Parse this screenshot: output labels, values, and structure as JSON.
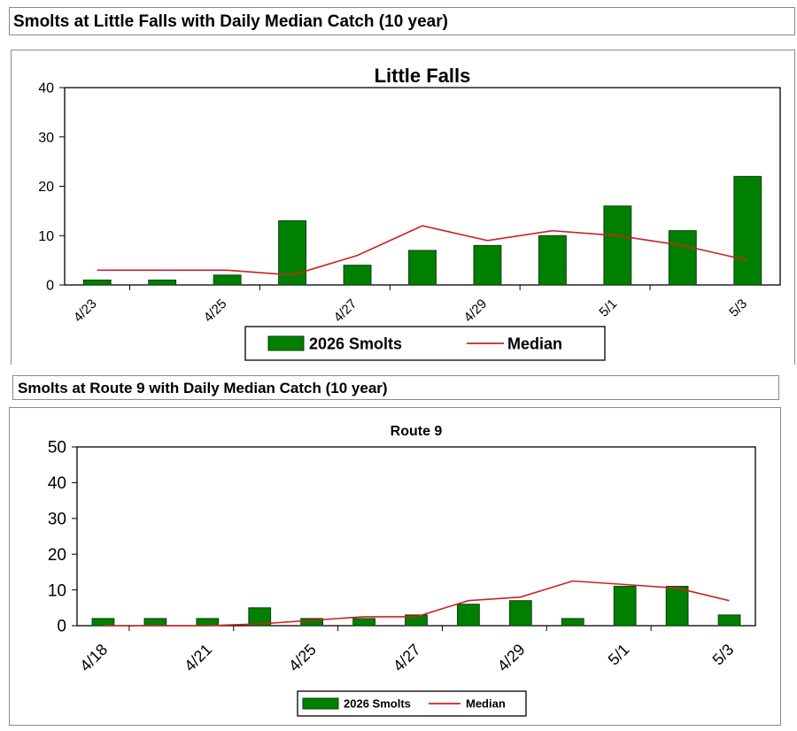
{
  "banners": {
    "top": "Smolts at Little Falls with Daily Median Catch (10 year)",
    "bottom": "Smolts at Route 9 with Daily Median Catch (10 year)"
  },
  "colors": {
    "bar": "#008000",
    "bar_stroke": "#0a3d0a",
    "median": "#cc2222"
  },
  "chart_data": [
    {
      "type": "bar",
      "title": "Little Falls",
      "xlabel": "",
      "ylabel": "",
      "ylim": [
        0,
        40
      ],
      "yticks": [
        0,
        10,
        20,
        30,
        40
      ],
      "tick_labels": [
        "4/23",
        "4/25",
        "4/27",
        "4/29",
        "5/1",
        "5/3"
      ],
      "grid": false,
      "legend_position": "bottom",
      "series": [
        {
          "name": "2026 Smolts",
          "kind": "bar",
          "values": [
            1,
            1,
            2,
            13,
            4,
            7,
            8,
            10,
            16,
            11,
            22
          ]
        },
        {
          "name": "Median",
          "kind": "line",
          "values": [
            3,
            3,
            3,
            2,
            6,
            12,
            9,
            11,
            10,
            8,
            5
          ]
        }
      ]
    },
    {
      "type": "bar",
      "title": "Route 9",
      "xlabel": "",
      "ylabel": "",
      "ylim": [
        0,
        50
      ],
      "yticks": [
        0,
        10,
        20,
        30,
        40,
        50
      ],
      "tick_labels": [
        "4/18",
        "4/21",
        "4/25",
        "4/27",
        "4/29",
        "5/1",
        "5/3"
      ],
      "grid": false,
      "legend_position": "bottom",
      "series": [
        {
          "name": "2026 Smolts",
          "kind": "bar",
          "values": [
            2,
            2,
            2,
            5,
            2,
            2,
            3,
            6,
            7,
            2,
            11,
            11,
            3
          ]
        },
        {
          "name": "Median",
          "kind": "line",
          "values": [
            0,
            0,
            0,
            0.5,
            1.5,
            2.5,
            2.5,
            7,
            8,
            12.5,
            11.5,
            10.5,
            7
          ]
        }
      ]
    }
  ]
}
